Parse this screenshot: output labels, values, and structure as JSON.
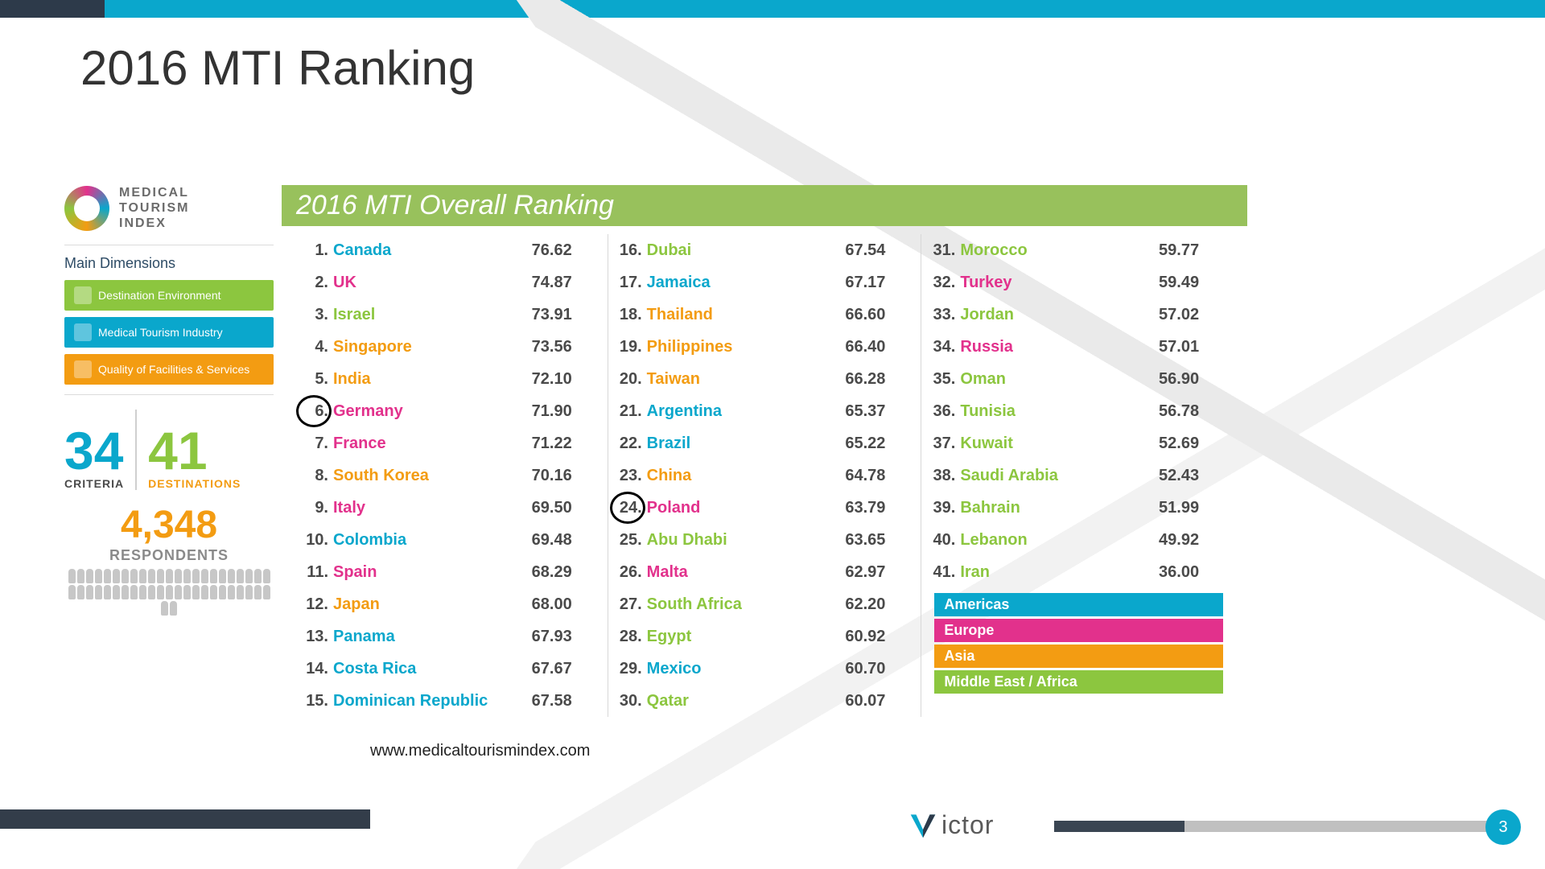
{
  "slide": {
    "title": "2016 MTI Ranking",
    "page_number": "3",
    "source": "www.medicaltourismindex.com"
  },
  "theme": {
    "colors": {
      "americas": "#0aa7cc",
      "europe": "#e2318c",
      "asia": "#f39c12",
      "mea": "#8cc63f",
      "header_green": "#98c15c",
      "text": "#4a4a4a",
      "topbar_dark": "#2d3a4a",
      "topbar_cyan": "#0aa7cc",
      "page_badge": "#0aa7cc"
    }
  },
  "mti_logo": {
    "line1": "MEDICAL",
    "line2": "TOURISM",
    "line3": "INDEX"
  },
  "dimensions": {
    "label": "Main Dimensions",
    "items": [
      {
        "label": "Destination Environment",
        "color": "#8cc63f"
      },
      {
        "label": "Medical Tourism Industry",
        "color": "#0aa7cc"
      },
      {
        "label": "Quality of Facilities & Services",
        "color": "#f39c12"
      }
    ]
  },
  "stats": {
    "criteria_n": "34",
    "criteria_l": "CRITERIA",
    "dest_n": "41",
    "dest_l": "DESTINATIONS",
    "resp_n": "4,348",
    "resp_l": "RESPONDENTS"
  },
  "ranking": {
    "header": "2016 MTI Overall Ranking",
    "circled_ranks": [
      6,
      24
    ],
    "rows": [
      {
        "rank": 1,
        "name": "Canada",
        "score": "76.62",
        "region": "americas"
      },
      {
        "rank": 2,
        "name": "UK",
        "score": "74.87",
        "region": "europe"
      },
      {
        "rank": 3,
        "name": "Israel",
        "score": "73.91",
        "region": "mea"
      },
      {
        "rank": 4,
        "name": "Singapore",
        "score": "73.56",
        "region": "asia"
      },
      {
        "rank": 5,
        "name": "India",
        "score": "72.10",
        "region": "asia"
      },
      {
        "rank": 6,
        "name": "Germany",
        "score": "71.90",
        "region": "europe"
      },
      {
        "rank": 7,
        "name": "France",
        "score": "71.22",
        "region": "europe"
      },
      {
        "rank": 8,
        "name": "South Korea",
        "score": "70.16",
        "region": "asia"
      },
      {
        "rank": 9,
        "name": "Italy",
        "score": "69.50",
        "region": "europe"
      },
      {
        "rank": 10,
        "name": "Colombia",
        "score": "69.48",
        "region": "americas"
      },
      {
        "rank": 11,
        "name": "Spain",
        "score": "68.29",
        "region": "europe"
      },
      {
        "rank": 12,
        "name": "Japan",
        "score": "68.00",
        "region": "asia"
      },
      {
        "rank": 13,
        "name": "Panama",
        "score": "67.93",
        "region": "americas"
      },
      {
        "rank": 14,
        "name": "Costa Rica",
        "score": "67.67",
        "region": "americas"
      },
      {
        "rank": 15,
        "name": "Dominican Republic",
        "score": "67.58",
        "region": "americas"
      },
      {
        "rank": 16,
        "name": "Dubai",
        "score": "67.54",
        "region": "mea"
      },
      {
        "rank": 17,
        "name": "Jamaica",
        "score": "67.17",
        "region": "americas"
      },
      {
        "rank": 18,
        "name": "Thailand",
        "score": "66.60",
        "region": "asia"
      },
      {
        "rank": 19,
        "name": "Philippines",
        "score": "66.40",
        "region": "asia"
      },
      {
        "rank": 20,
        "name": "Taiwan",
        "score": "66.28",
        "region": "asia"
      },
      {
        "rank": 21,
        "name": "Argentina",
        "score": "65.37",
        "region": "americas"
      },
      {
        "rank": 22,
        "name": "Brazil",
        "score": "65.22",
        "region": "americas"
      },
      {
        "rank": 23,
        "name": "China",
        "score": "64.78",
        "region": "asia"
      },
      {
        "rank": 24,
        "name": "Poland",
        "score": "63.79",
        "region": "europe"
      },
      {
        "rank": 25,
        "name": "Abu Dhabi",
        "score": "63.65",
        "region": "mea"
      },
      {
        "rank": 26,
        "name": "Malta",
        "score": "62.97",
        "region": "europe"
      },
      {
        "rank": 27,
        "name": "South Africa",
        "score": "62.20",
        "region": "mea"
      },
      {
        "rank": 28,
        "name": "Egypt",
        "score": "60.92",
        "region": "mea"
      },
      {
        "rank": 29,
        "name": "Mexico",
        "score": "60.70",
        "region": "americas"
      },
      {
        "rank": 30,
        "name": "Qatar",
        "score": "60.07",
        "region": "mea"
      },
      {
        "rank": 31,
        "name": "Morocco",
        "score": "59.77",
        "region": "mea"
      },
      {
        "rank": 32,
        "name": "Turkey",
        "score": "59.49",
        "region": "europe"
      },
      {
        "rank": 33,
        "name": "Jordan",
        "score": "57.02",
        "region": "mea"
      },
      {
        "rank": 34,
        "name": "Russia",
        "score": "57.01",
        "region": "europe"
      },
      {
        "rank": 35,
        "name": "Oman",
        "score": "56.90",
        "region": "mea"
      },
      {
        "rank": 36,
        "name": "Tunisia",
        "score": "56.78",
        "region": "mea"
      },
      {
        "rank": 37,
        "name": "Kuwait",
        "score": "52.69",
        "region": "mea"
      },
      {
        "rank": 38,
        "name": "Saudi Arabia",
        "score": "52.43",
        "region": "mea"
      },
      {
        "rank": 39,
        "name": "Bahrain",
        "score": "51.99",
        "region": "mea"
      },
      {
        "rank": 40,
        "name": "Lebanon",
        "score": "49.92",
        "region": "mea"
      },
      {
        "rank": 41,
        "name": "Iran",
        "score": "36.00",
        "region": "mea"
      }
    ],
    "legend": [
      {
        "label": "Americas",
        "color": "#0aa7cc"
      },
      {
        "label": "Europe",
        "color": "#e2318c"
      },
      {
        "label": "Asia",
        "color": "#f39c12"
      },
      {
        "label": "Middle East / Africa",
        "color": "#8cc63f"
      }
    ]
  },
  "brand": {
    "name": "ictor"
  }
}
